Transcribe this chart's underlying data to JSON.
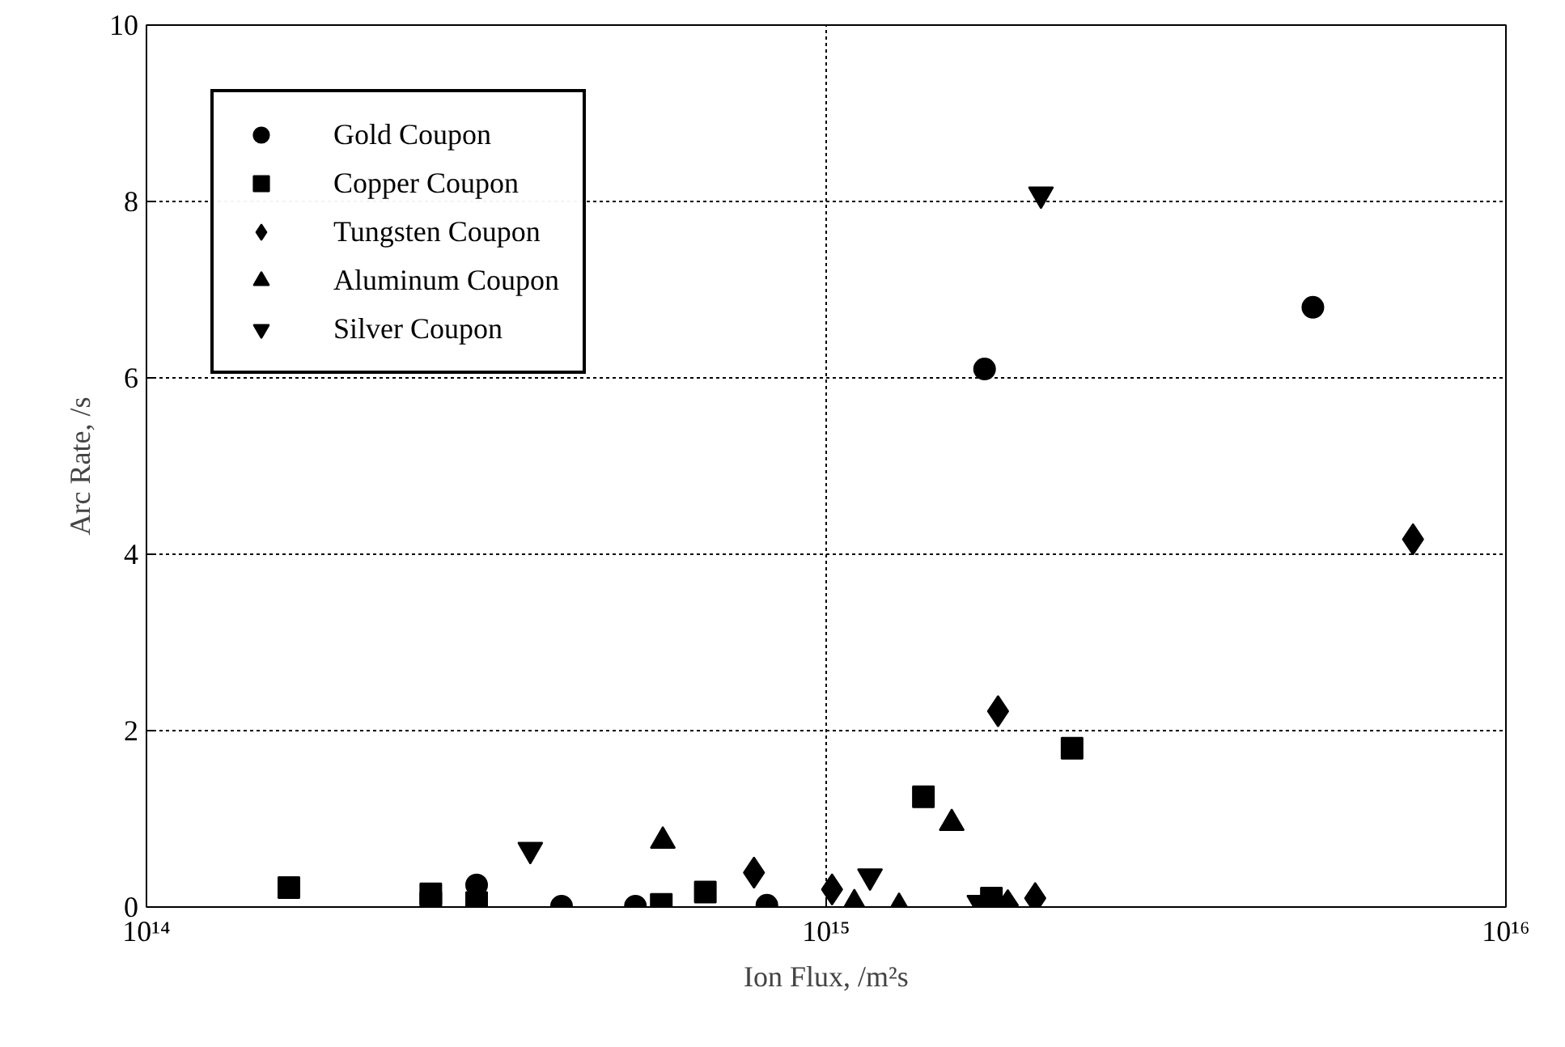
{
  "chart_data": {
    "type": "scatter",
    "xlabel": "Ion Flux, /m²s",
    "ylabel": "Arc Rate, /s",
    "log": "x",
    "xlim": [
      100000000000000.0,
      1e+16
    ],
    "xticks": [
      {
        "value": 100000000000000.0,
        "label": "10¹⁴"
      },
      {
        "value": 1000000000000000.0,
        "label": "10¹⁵"
      },
      {
        "value": 1e+16,
        "label": "10¹⁶"
      }
    ],
    "ylim": [
      0,
      10
    ],
    "yticks": [
      0,
      2,
      4,
      6,
      8,
      10
    ],
    "grid": true,
    "legend": "top left",
    "series": [
      {
        "name": "Gold Coupon",
        "color": "#000000",
        "marker": "circle",
        "x": [
          1710000000000000.0,
          5200000000000000.0,
          306000000000000.0,
          408000000000000.0,
          524000000000000.0,
          818000000000000.0
        ],
        "values": [
          6.1,
          6.8,
          0.25,
          0.01,
          0.01,
          0.02
        ]
      },
      {
        "name": "Copper Coupon",
        "color": "#000000",
        "marker": "square",
        "x": [
          162000000000000.0,
          262000000000000.0,
          262000000000000.0,
          306000000000000.0,
          572000000000000.0,
          664000000000000.0,
          1390000000000000.0,
          2300000000000000.0,
          1750000000000000.0
        ],
        "values": [
          0.22,
          0.15,
          0.05,
          0.05,
          0.03,
          0.17,
          1.25,
          1.8,
          0.1
        ]
      },
      {
        "name": "Tungsten Coupon",
        "color": "#000000",
        "marker": "diamond",
        "x": [
          783000000000000.0,
          1020000000000000.0,
          1790000000000000.0,
          7300000000000000.0,
          1850000000000000.0,
          2030000000000000.0
        ],
        "values": [
          0.39,
          0.2,
          2.22,
          4.17,
          0.02,
          0.1
        ]
      },
      {
        "name": "Aluminum Coupon",
        "color": "#000000",
        "marker": "triangle",
        "x": [
          575000000000000.0,
          1100000000000000.0,
          1280000000000000.0,
          1530000000000000.0
        ],
        "values": [
          0.75,
          0.04,
          0.0,
          0.95
        ]
      },
      {
        "name": "Silver Coupon",
        "color": "#000000",
        "x": [
          367000000000000.0,
          1160000000000000.0,
          2070000000000000.0,
          1680000000000000.0
        ],
        "values": [
          0.65,
          0.35,
          8.08,
          0.05
        ]
      }
    ]
  }
}
